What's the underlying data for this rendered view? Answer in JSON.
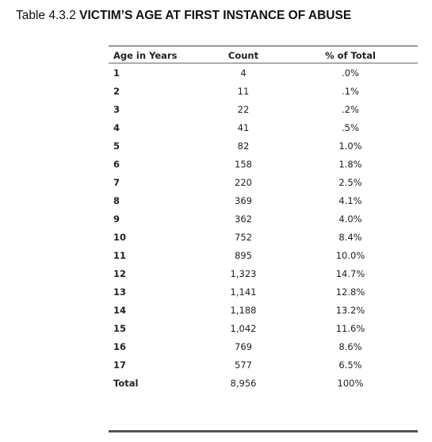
{
  "caption": {
    "number": "Table 4.3.2",
    "title": "VICTIM’S AGE AT FIRST INSTANCE OF ABUSE"
  },
  "table": {
    "headers": {
      "age": "Age in Years",
      "count": "Count",
      "percent": "% of Total"
    },
    "rows": [
      {
        "age": "1",
        "count": "4",
        "percent": ".0%"
      },
      {
        "age": "2",
        "count": "11",
        "percent": ".1%"
      },
      {
        "age": "3",
        "count": "22",
        "percent": ".2%"
      },
      {
        "age": "4",
        "count": "41",
        "percent": ".5%"
      },
      {
        "age": "5",
        "count": "82",
        "percent": "1.0%"
      },
      {
        "age": "6",
        "count": "158",
        "percent": "1.8%"
      },
      {
        "age": "7",
        "count": "220",
        "percent": "2.5%"
      },
      {
        "age": "8",
        "count": "369",
        "percent": "4.1%"
      },
      {
        "age": "9",
        "count": "362",
        "percent": "4.0%"
      },
      {
        "age": "10",
        "count": "752",
        "percent": "8.4%"
      },
      {
        "age": "11",
        "count": "895",
        "percent": "10.0%"
      },
      {
        "age": "12",
        "count": "1,323",
        "percent": "14.7%"
      },
      {
        "age": "13",
        "count": "1,141",
        "percent": "12.8%"
      },
      {
        "age": "14",
        "count": "1,188",
        "percent": "13.2%"
      },
      {
        "age": "15",
        "count": "1,042",
        "percent": "11.6%"
      },
      {
        "age": "16",
        "count": "769",
        "percent": "8.6%"
      },
      {
        "age": "17",
        "count": "577",
        "percent": "6.5%"
      }
    ],
    "total": {
      "age": "Total",
      "count": "8,956",
      "percent": "100%"
    }
  }
}
